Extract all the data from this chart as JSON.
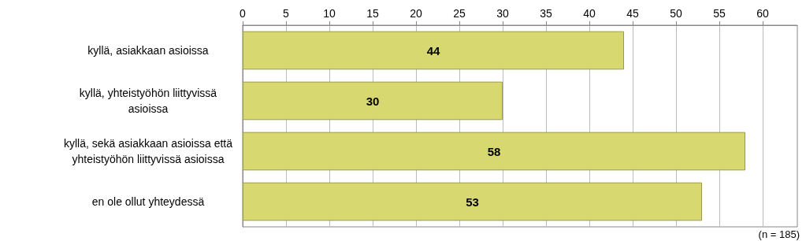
{
  "chart_data": {
    "type": "bar",
    "orientation": "horizontal",
    "categories": [
      "kyllä, asiakkaan asioissa",
      "kyllä, yhteistyöhön liittyvissä asioissa",
      "kyllä, sekä asiakkaan asioissa että yhteistyöhön liittyvissä asioissa",
      "en ole ollut yhteydessä"
    ],
    "values": [
      44,
      30,
      58,
      53
    ],
    "color": "#d8d870",
    "xlim": [
      0,
      64
    ],
    "xticks": [
      0,
      5,
      10,
      15,
      20,
      25,
      30,
      35,
      40,
      45,
      50,
      55,
      60
    ],
    "grid": "x",
    "data_labels": true,
    "annotations": [
      "(n = 185)"
    ]
  }
}
